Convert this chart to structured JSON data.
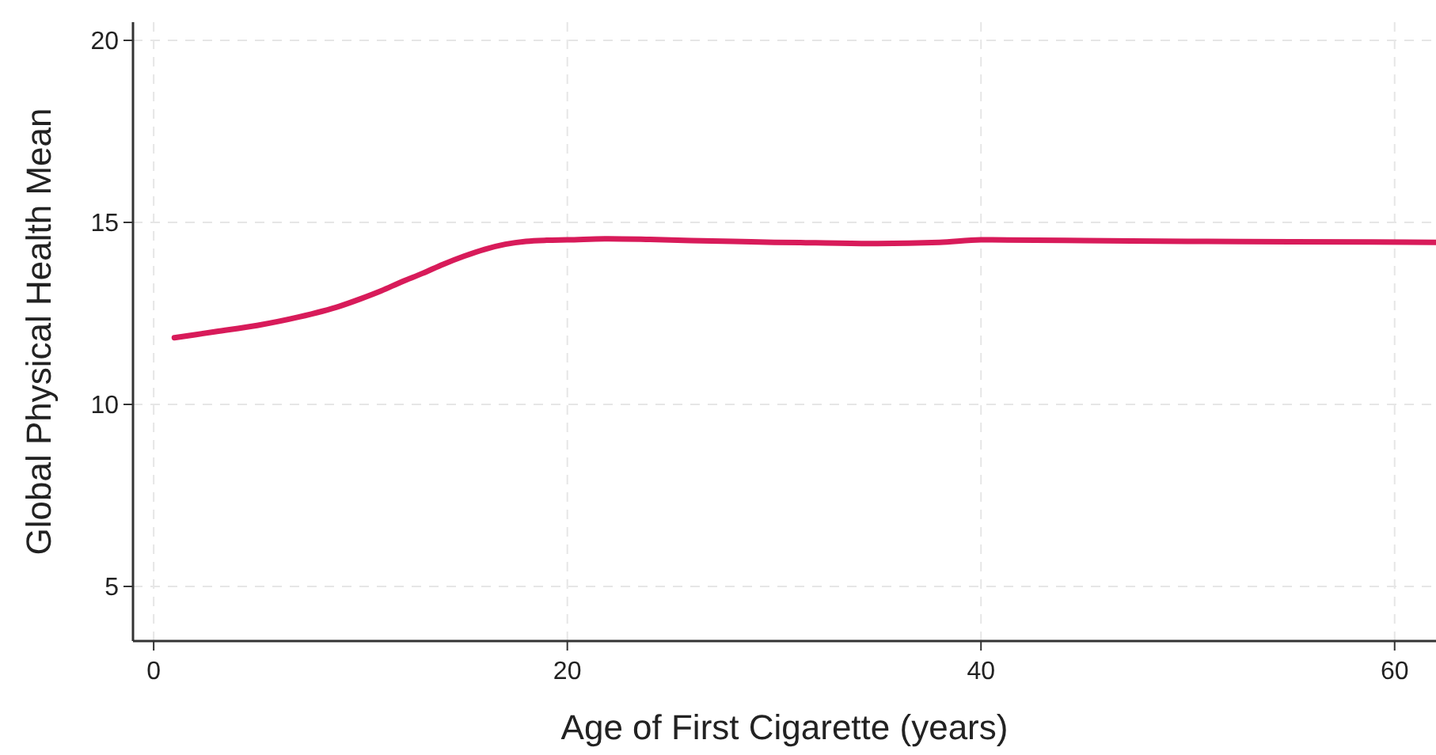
{
  "chart_data": {
    "type": "line",
    "xlabel": "Age of First Cigarette (years)",
    "ylabel": "Global Physical Health Mean",
    "x": [
      1,
      3,
      5,
      7,
      9,
      10,
      11,
      12,
      13,
      14,
      15,
      16,
      17,
      18,
      19,
      20,
      22,
      24,
      26,
      28,
      30,
      32,
      35,
      38,
      40,
      45,
      50,
      55,
      62
    ],
    "series": [
      {
        "color": "#d81b5a",
        "values": [
          11.83,
          12.0,
          12.17,
          12.4,
          12.7,
          12.9,
          13.12,
          13.37,
          13.6,
          13.85,
          14.07,
          14.26,
          14.4,
          14.48,
          14.51,
          14.52,
          14.55,
          14.53,
          14.5,
          14.48,
          14.45,
          14.44,
          14.42,
          14.45,
          14.52,
          14.5,
          14.48,
          14.47,
          14.45
        ]
      }
    ],
    "xlim": [
      -1,
      62
    ],
    "xticks": [
      0,
      20,
      40,
      60
    ],
    "ylim": [
      3.5,
      20.5
    ],
    "yticks": [
      5,
      10,
      15,
      20
    ],
    "grid": true,
    "marker": "none",
    "line_style": "solid"
  }
}
